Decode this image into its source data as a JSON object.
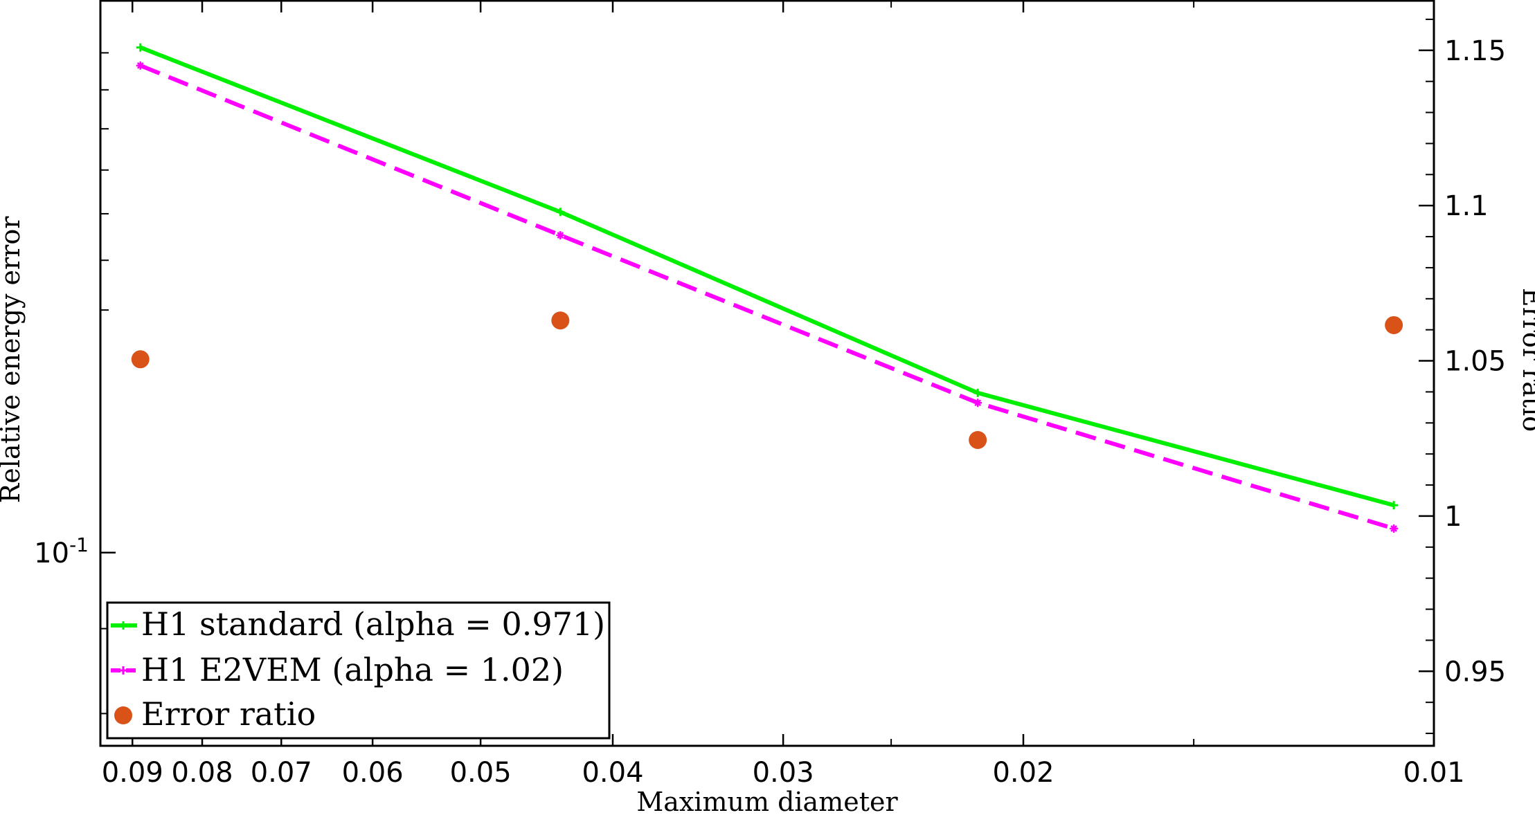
{
  "chart_data": {
    "type": "line",
    "xlabel": "Maximum diameter",
    "ylabel": "Relative energy error",
    "y2label": "Error ratio",
    "x_scale": "log",
    "x_reversed": true,
    "xlim": [
      0.095,
      0.01
    ],
    "x_ticks": [
      0.09,
      0.08,
      0.07,
      0.06,
      0.05,
      0.04,
      0.03,
      0.02,
      0.01
    ],
    "x_tick_labels": [
      "0.09",
      "0.08",
      "0.07",
      "0.06",
      "0.05",
      "0.04",
      "0.03",
      "0.02",
      "0.01"
    ],
    "y_scale": "log",
    "ylim": [
      0.0765,
      0.215
    ],
    "y_major_ticks": [
      0.1
    ],
    "y_tick_labels": [
      {
        "base": "10",
        "exp": "-1"
      }
    ],
    "y2_scale": "linear",
    "y2lim": [
      0.926,
      1.166
    ],
    "y2_ticks": [
      0.95,
      1.0,
      1.05,
      1.1,
      1.15
    ],
    "y2_tick_labels": [
      "0.95",
      "1",
      "1.05",
      "1.1",
      "1.15"
    ],
    "x": [
      0.0888,
      0.0437,
      0.0216,
      0.0107
    ],
    "series": [
      {
        "name": "H1 standard (alpha = 0.971)",
        "axis": "left",
        "style": "solid",
        "marker": "plus",
        "color": "#00ee00",
        "values": [
          0.2015,
          0.1604,
          0.1248,
          0.1068
        ]
      },
      {
        "name": "H1 E2VEM (alpha = 1.02)",
        "axis": "left",
        "style": "dashed",
        "marker": "star",
        "color": "#ff00ff",
        "values": [
          0.1965,
          0.1553,
          0.1231,
          0.1034
        ]
      },
      {
        "name": "Error ratio",
        "axis": "right",
        "style": "markers",
        "marker": "circle",
        "color": "#d95319",
        "values": [
          1.0505,
          1.063,
          1.0245,
          1.0615
        ]
      }
    ],
    "legend_placement": "bottom-left",
    "grid": false
  }
}
